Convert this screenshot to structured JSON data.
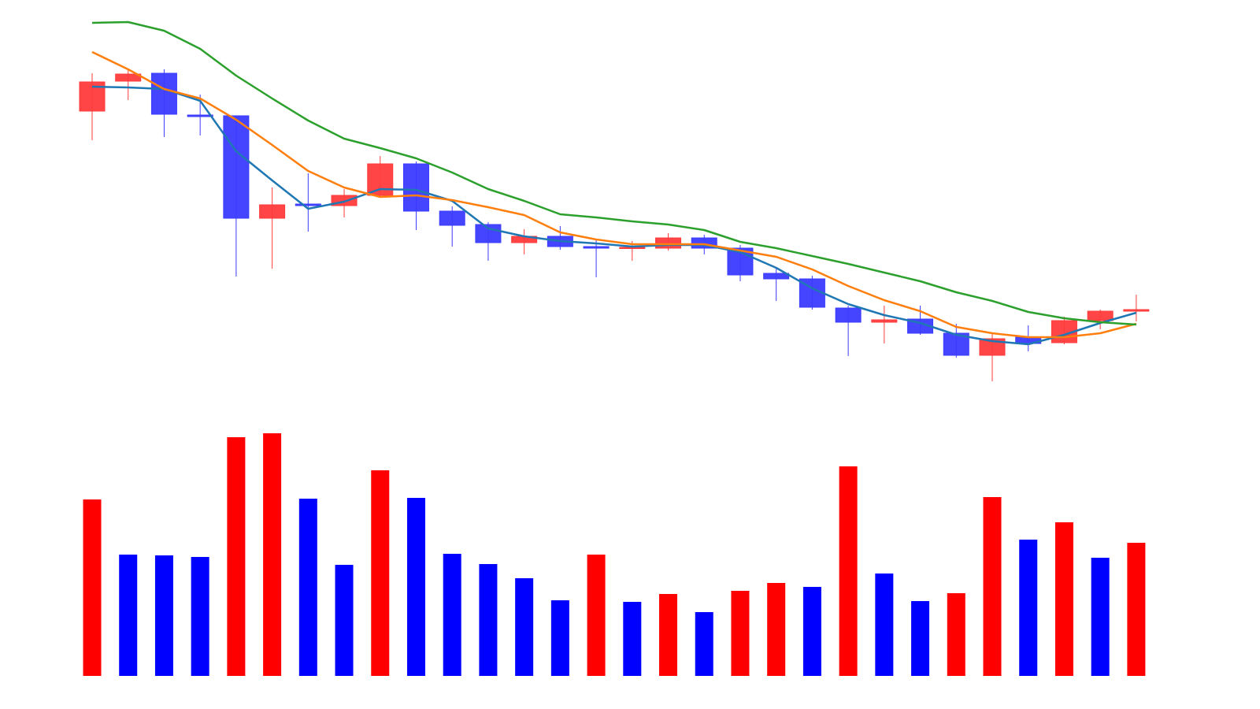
{
  "chart_data": {
    "type": "candlestick",
    "ylim": [
      0,
      500
    ],
    "up_color": "#ff3b3b",
    "down_color": "#3b3bff",
    "open": [
      359,
      397,
      407,
      354,
      353,
      223,
      241,
      239,
      252,
      292,
      232,
      215,
      192,
      200,
      187,
      185,
      185,
      198,
      185,
      153,
      146,
      109,
      91,
      95,
      77,
      49,
      72,
      65,
      93,
      105
    ],
    "high": [
      407,
      412,
      412,
      380,
      353,
      262,
      280,
      260,
      302,
      295,
      238,
      218,
      209,
      213,
      197,
      194,
      204,
      202,
      189,
      160,
      150,
      112,
      112,
      112,
      89,
      76,
      87,
      98,
      107,
      126
    ],
    "low": [
      322,
      373,
      326,
      328,
      149,
      159,
      206,
      224,
      250,
      208,
      187,
      169,
      177,
      183,
      148,
      169,
      182,
      177,
      143,
      118,
      107,
      48,
      64,
      75,
      46,
      16,
      54,
      63,
      82,
      92
    ],
    "close": [
      396,
      406,
      355,
      352,
      223,
      240,
      239,
      252,
      292,
      232,
      214,
      192,
      200,
      187,
      185,
      186,
      198,
      185,
      151,
      146,
      110,
      91,
      94,
      77,
      49,
      70,
      64,
      93,
      105,
      107
    ],
    "moving_averages": [
      {
        "color": "#1f77b4",
        "values": [
          390,
          389,
          387,
          372,
          308,
          271,
          235,
          244,
          260,
          259,
          245,
          210,
          200,
          194,
          191,
          187,
          189,
          189,
          180,
          160,
          134,
          114,
          100,
          90,
          75,
          67,
          63,
          75,
          90,
          103
        ]
      },
      {
        "color": "#ff7f0e",
        "values": [
          434,
          412,
          387,
          375,
          348,
          316,
          283,
          262,
          250,
          252,
          246,
          237,
          227,
          205,
          196,
          190,
          190,
          190,
          182,
          174,
          158,
          137,
          119,
          105,
          85,
          77,
          72,
          72,
          77,
          89
        ]
      },
      {
        "color": "#2ca02c",
        "values": [
          471,
          472,
          461,
          438,
          404,
          375,
          347,
          324,
          312,
          299,
          281,
          260,
          245,
          228,
          224,
          219,
          215,
          208,
          193,
          185,
          175,
          165,
          154,
          143,
          129,
          118,
          104,
          96,
          91,
          88
        ]
      }
    ],
    "volume": [
      224,
      154,
      153,
      151,
      303,
      308,
      225,
      141,
      261,
      226,
      155,
      142,
      124,
      96,
      154,
      94,
      104,
      81,
      108,
      118,
      113,
      266,
      130,
      95,
      105,
      227,
      173,
      195,
      150,
      169
    ],
    "volume_colors": [
      "#ff0000",
      "#0000ff",
      "#0000ff",
      "#0000ff",
      "#ff0000",
      "#ff0000",
      "#0000ff",
      "#0000ff",
      "#ff0000",
      "#0000ff",
      "#0000ff",
      "#0000ff",
      "#0000ff",
      "#0000ff",
      "#ff0000",
      "#0000ff",
      "#ff0000",
      "#0000ff",
      "#ff0000",
      "#ff0000",
      "#0000ff",
      "#ff0000",
      "#0000ff",
      "#0000ff",
      "#ff0000",
      "#ff0000",
      "#0000ff",
      "#ff0000",
      "#0000ff",
      "#ff0000"
    ],
    "volume_ylim": [
      0,
      320
    ]
  }
}
